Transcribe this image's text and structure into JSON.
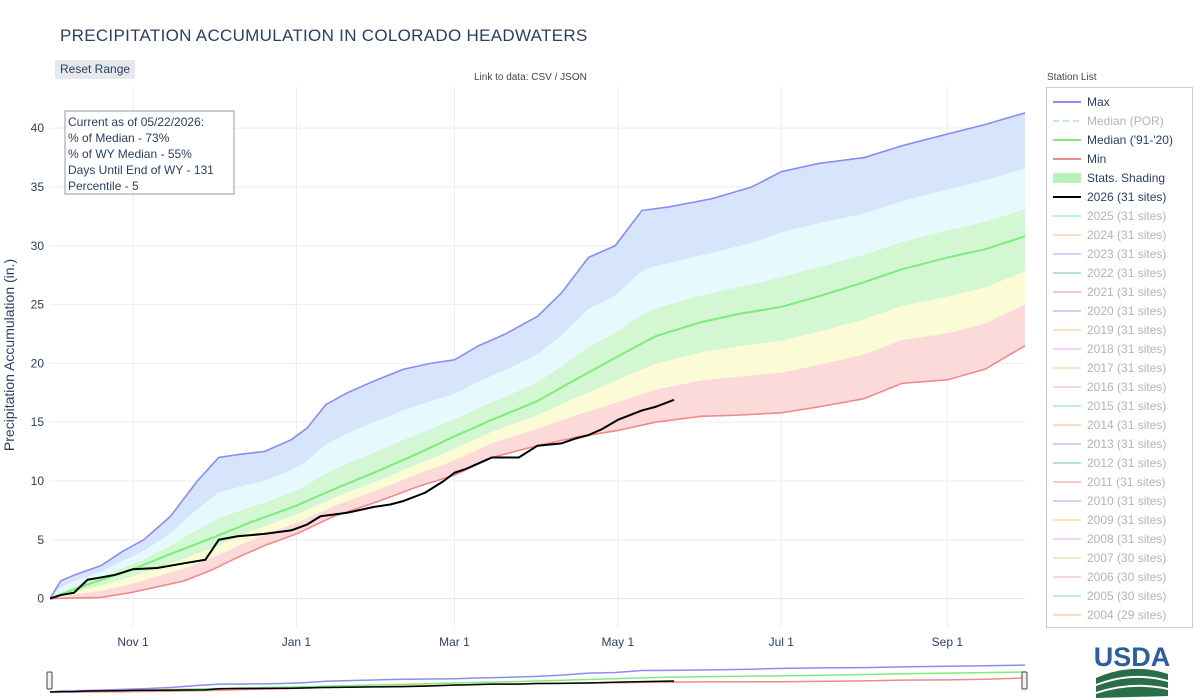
{
  "title": "PRECIPITATION ACCUMULATION IN COLORADO HEADWATERS",
  "reset_label": "Reset Range",
  "data_link": "Link to data: CSV / JSON",
  "station_list_title": "Station List",
  "info_box": [
    "Current as of 05/22/2026:",
    "% of Median - 73%",
    "% of WY Median - 55%",
    "Days Until End of WY - 131",
    "Percentile - 5"
  ],
  "logo_text": "USDA",
  "colors": {
    "max": "#8c8cf0",
    "median_por": "#9be29b",
    "median_9120": "#7cec7c",
    "min": "#f08a8a",
    "current": "#000000",
    "band_blue": "#d6e4fc",
    "band_cyan": "#e6fafd",
    "band_green": "#d2f7d2",
    "band_yellow": "#fbfbd6",
    "band_red": "#fddada"
  },
  "legend": [
    {
      "label": "Max",
      "color": "#8c8cf0",
      "style": "line",
      "active": true
    },
    {
      "label": "Median (POR)",
      "color": "#9be29b",
      "style": "dash",
      "active": false
    },
    {
      "label": "Median ('91-'20)",
      "color": "#7cec7c",
      "style": "line",
      "active": true
    },
    {
      "label": "Min",
      "color": "#f08a8a",
      "style": "line",
      "active": true
    },
    {
      "label": "Stats. Shading",
      "color": "#b8f0b8",
      "style": "fill",
      "active": true
    },
    {
      "label": "2026 (31 sites)",
      "color": "#000000",
      "style": "thick",
      "active": true
    },
    {
      "label": "2025 (31 sites)",
      "color": "#8ee0ea",
      "style": "line",
      "active": false
    },
    {
      "label": "2024 (31 sites)",
      "color": "#f3c89c",
      "style": "line",
      "active": false
    },
    {
      "label": "2023 (31 sites)",
      "color": "#c8a6ee",
      "style": "line",
      "active": false
    },
    {
      "label": "2022 (31 sites)",
      "color": "#7fd6b0",
      "style": "line",
      "active": false
    },
    {
      "label": "2021 (31 sites)",
      "color": "#f0a0a0",
      "style": "line",
      "active": false
    },
    {
      "label": "2020 (31 sites)",
      "color": "#a8b4ee",
      "style": "line",
      "active": false
    },
    {
      "label": "2019 (31 sites)",
      "color": "#f6d098",
      "style": "line",
      "active": false
    },
    {
      "label": "2018 (31 sites)",
      "color": "#e8b4ec",
      "style": "line",
      "active": false
    },
    {
      "label": "2017 (31 sites)",
      "color": "#cfe8a2",
      "style": "line",
      "active": false
    },
    {
      "label": "2016 (31 sites)",
      "color": "#f4b4c8",
      "style": "line",
      "active": false
    },
    {
      "label": "2015 (31 sites)",
      "color": "#8ee0ea",
      "style": "line",
      "active": false
    },
    {
      "label": "2014 (31 sites)",
      "color": "#f3c89c",
      "style": "line",
      "active": false
    },
    {
      "label": "2013 (31 sites)",
      "color": "#c8a6ee",
      "style": "line",
      "active": false
    },
    {
      "label": "2012 (31 sites)",
      "color": "#7fd6b0",
      "style": "line",
      "active": false
    },
    {
      "label": "2011 (31 sites)",
      "color": "#f0a0a0",
      "style": "line",
      "active": false
    },
    {
      "label": "2010 (31 sites)",
      "color": "#a8b4ee",
      "style": "line",
      "active": false
    },
    {
      "label": "2009 (31 sites)",
      "color": "#f6d098",
      "style": "line",
      "active": false
    },
    {
      "label": "2008 (31 sites)",
      "color": "#e8b4ec",
      "style": "line",
      "active": false
    },
    {
      "label": "2007 (30 sites)",
      "color": "#cfe8a2",
      "style": "line",
      "active": false
    },
    {
      "label": "2006 (30 sites)",
      "color": "#f4b4c8",
      "style": "line",
      "active": false
    },
    {
      "label": "2005 (30 sites)",
      "color": "#8ee0ea",
      "style": "line",
      "active": false
    },
    {
      "label": "2004 (29 sites)",
      "color": "#f3c89c",
      "style": "line",
      "active": false
    }
  ],
  "chart_data": {
    "type": "line",
    "title": "PRECIPITATION ACCUMULATION IN COLORADO HEADWATERS",
    "xlabel": "",
    "ylabel": "Precipitation Accumulation (in.)",
    "x_range": [
      "2025-10-01",
      "2026-09-30"
    ],
    "x_ticks": [
      {
        "date": "2025-11-01",
        "label": "Nov 1"
      },
      {
        "date": "2026-01-01",
        "label": "Jan 1"
      },
      {
        "date": "2026-03-01",
        "label": "Mar 1"
      },
      {
        "date": "2026-05-01",
        "label": "May 1"
      },
      {
        "date": "2026-07-01",
        "label": "Jul 1"
      },
      {
        "date": "2026-09-01",
        "label": "Sep 1"
      }
    ],
    "ylim": [
      -2.5,
      43.5
    ],
    "y_ticks": [
      0,
      5,
      10,
      15,
      20,
      25,
      30,
      35,
      40
    ],
    "grid": true,
    "legend_position": "right",
    "series": [
      {
        "name": "Max",
        "color": "#8c8cf0",
        "x": [
          "2025-10-01",
          "2025-10-05",
          "2025-10-10",
          "2025-10-20",
          "2025-10-28",
          "2025-11-05",
          "2025-11-15",
          "2025-11-25",
          "2025-12-03",
          "2025-12-12",
          "2025-12-20",
          "2025-12-30",
          "2026-01-05",
          "2026-01-12",
          "2026-01-20",
          "2026-01-30",
          "2026-02-10",
          "2026-02-20",
          "2026-03-01",
          "2026-03-10",
          "2026-03-20",
          "2026-04-01",
          "2026-04-10",
          "2026-04-20",
          "2026-04-30",
          "2026-05-10",
          "2026-05-20",
          "2026-06-05",
          "2026-06-20",
          "2026-07-01",
          "2026-07-15",
          "2026-08-01",
          "2026-08-15",
          "2026-09-01",
          "2026-09-15",
          "2026-09-30"
        ],
        "y": [
          0,
          1.5,
          2.0,
          2.8,
          4.0,
          5.0,
          7.0,
          10.0,
          12.0,
          12.3,
          12.5,
          13.5,
          14.5,
          16.5,
          17.5,
          18.5,
          19.5,
          20.0,
          20.3,
          21.5,
          22.5,
          24.0,
          26.0,
          29.0,
          30.0,
          33.0,
          33.3,
          34.0,
          35.0,
          36.3,
          37.0,
          37.5,
          38.5,
          39.5,
          40.3,
          41.3
        ]
      },
      {
        "name": "Median ('91-'20)",
        "color": "#7cec7c",
        "x": [
          "2025-10-01",
          "2025-10-15",
          "2025-11-01",
          "2025-11-15",
          "2025-12-01",
          "2025-12-15",
          "2026-01-01",
          "2026-01-15",
          "2026-02-01",
          "2026-02-15",
          "2026-03-01",
          "2026-03-15",
          "2026-04-01",
          "2026-04-15",
          "2026-05-01",
          "2026-05-15",
          "2026-06-01",
          "2026-06-15",
          "2026-07-01",
          "2026-07-15",
          "2026-08-01",
          "2026-08-15",
          "2026-09-01",
          "2026-09-15",
          "2026-09-30"
        ],
        "y": [
          0,
          1.2,
          2.5,
          3.8,
          5.2,
          6.5,
          7.9,
          9.3,
          10.9,
          12.3,
          13.8,
          15.2,
          16.8,
          18.6,
          20.6,
          22.3,
          23.5,
          24.2,
          24.8,
          25.7,
          26.9,
          28.0,
          29.0,
          29.7,
          30.8
        ]
      },
      {
        "name": "Min",
        "color": "#f08a8a",
        "x": [
          "2025-10-01",
          "2025-10-20",
          "2025-10-31",
          "2025-11-10",
          "2025-11-20",
          "2025-12-01",
          "2025-12-10",
          "2025-12-20",
          "2026-01-01",
          "2026-01-15",
          "2026-02-01",
          "2026-02-15",
          "2026-03-01",
          "2026-03-15",
          "2026-04-01",
          "2026-04-15",
          "2026-05-01",
          "2026-05-15",
          "2026-06-01",
          "2026-06-15",
          "2026-07-01",
          "2026-07-15",
          "2026-08-01",
          "2026-08-15",
          "2026-09-01",
          "2026-09-15",
          "2026-09-30"
        ],
        "y": [
          0,
          0.1,
          0.5,
          1.0,
          1.5,
          2.5,
          3.5,
          4.5,
          5.5,
          7.0,
          8.3,
          9.5,
          10.5,
          12.0,
          13.0,
          13.7,
          14.3,
          15.0,
          15.5,
          15.6,
          15.8,
          16.3,
          17.0,
          18.3,
          18.6,
          19.5,
          21.5
        ]
      },
      {
        "name": "2026 (31 sites)",
        "color": "#000000",
        "x": [
          "2025-10-01",
          "2025-10-05",
          "2025-10-10",
          "2025-10-15",
          "2025-10-20",
          "2025-10-25",
          "2025-11-01",
          "2025-11-10",
          "2025-11-20",
          "2025-11-28",
          "2025-12-03",
          "2025-12-10",
          "2025-12-20",
          "2025-12-30",
          "2026-01-05",
          "2026-01-10",
          "2026-01-20",
          "2026-01-30",
          "2026-02-05",
          "2026-02-10",
          "2026-02-18",
          "2026-02-25",
          "2026-03-01",
          "2026-03-05",
          "2026-03-10",
          "2026-03-15",
          "2026-03-25",
          "2026-04-01",
          "2026-04-10",
          "2026-04-15",
          "2026-04-20",
          "2026-04-25",
          "2026-05-01",
          "2026-05-10",
          "2026-05-15",
          "2026-05-22"
        ],
        "y": [
          0,
          0.3,
          0.5,
          1.6,
          1.8,
          2.0,
          2.5,
          2.6,
          3.0,
          3.3,
          5.0,
          5.3,
          5.5,
          5.8,
          6.3,
          7.0,
          7.3,
          7.8,
          8.0,
          8.3,
          9.0,
          10.0,
          10.7,
          11.0,
          11.5,
          12.0,
          12.0,
          13.0,
          13.2,
          13.6,
          13.9,
          14.4,
          15.2,
          16.0,
          16.3,
          16.9
        ]
      }
    ],
    "shading_bands": [
      {
        "label": "upper",
        "color": "#d6e4fc",
        "lower_series": "p90",
        "upper_series": "Max"
      },
      {
        "label": "p70-p90",
        "color": "#e6fafd"
      },
      {
        "label": "p30-p70",
        "color": "#d2f7d2"
      },
      {
        "label": "p10-p30",
        "color": "#fbfbd6"
      },
      {
        "label": "lower",
        "color": "#fddada"
      }
    ]
  }
}
